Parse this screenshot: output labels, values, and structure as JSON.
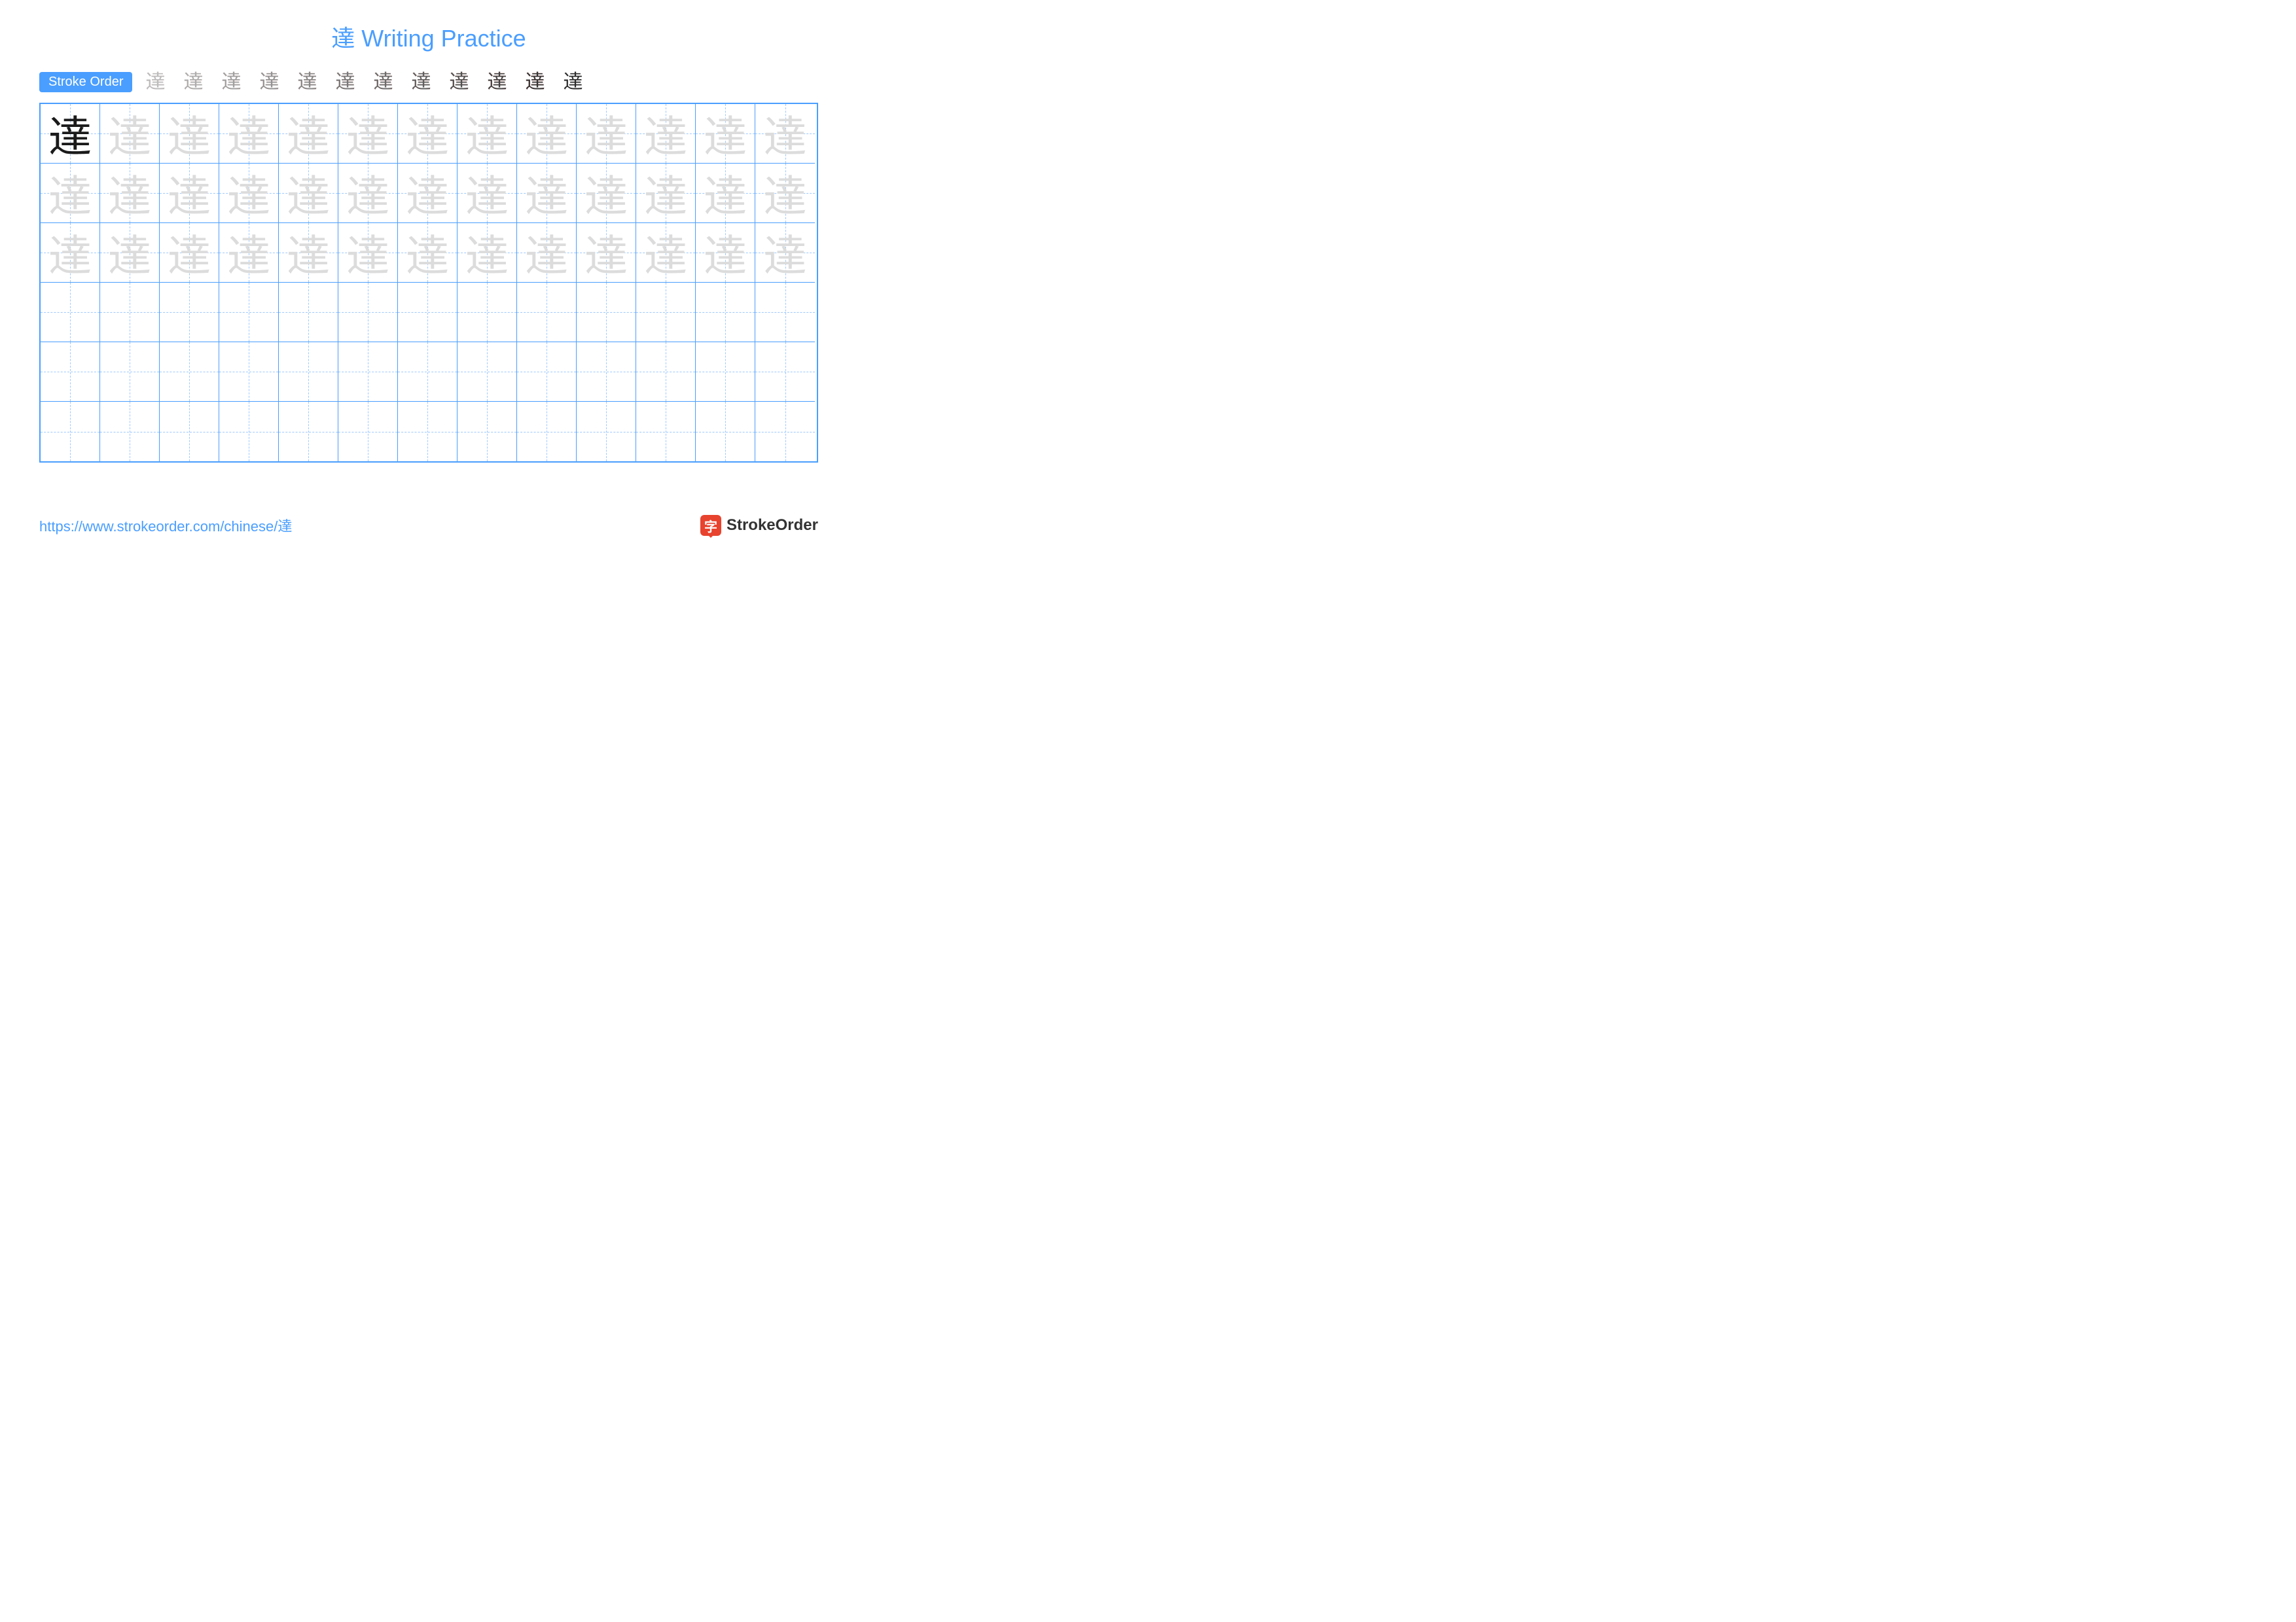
{
  "title": "達 Writing Practice",
  "title_color": "#4a9eff",
  "stroke_order_label": "Stroke Order",
  "badge_bg": "#4a9eff",
  "character": "達",
  "stroke_count": 12,
  "stroke_step_color_done": "#2a2a2a",
  "stroke_step_color_new": "#d83a3a",
  "grid": {
    "cols": 13,
    "rows": 6,
    "cell_size": 91,
    "border_color": "#4a9eff",
    "guide_color": "#9ec9ff",
    "example_char_color": "#1a1a1a",
    "trace_char_color": "#dcdcdc",
    "char_fontsize": 66,
    "trace_rows": 3
  },
  "footer_url": "https://www.strokeorder.com/chinese/達",
  "footer_url_color": "#4a9eff",
  "logo_text": "StrokeOrder",
  "logo_icon_char": "字",
  "logo_icon_bg": "#e8432e"
}
